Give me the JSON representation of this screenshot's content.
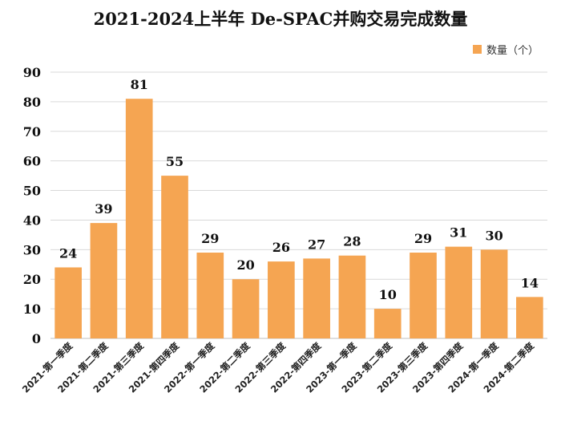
{
  "chart_data": {
    "type": "bar",
    "title": "2021-2024上半年 De-SPAC并购交易完成数量",
    "categories": [
      "2021-第一季度",
      "2021-第二季度",
      "2021-第三季度",
      "2021-第四季度",
      "2022-第一季度",
      "2022-第二季度",
      "2022-第三季度",
      "2022-第四季度",
      "2023-第一季度",
      "2023-第二季度",
      "2023-第三季度",
      "2023-第四季度",
      "2024-第一季度",
      "2024-第二季度"
    ],
    "series": [
      {
        "name": "数量（个）",
        "values": [
          24,
          39,
          81,
          55,
          29,
          20,
          26,
          27,
          28,
          10,
          29,
          31,
          30,
          14
        ]
      }
    ],
    "ylim": [
      0,
      90
    ],
    "yticks": [
      0,
      10,
      20,
      30,
      40,
      50,
      60,
      70,
      80,
      90
    ],
    "grid": true,
    "legend_position": "top-right",
    "data_labels": true,
    "bar_color": "#F5A552"
  }
}
